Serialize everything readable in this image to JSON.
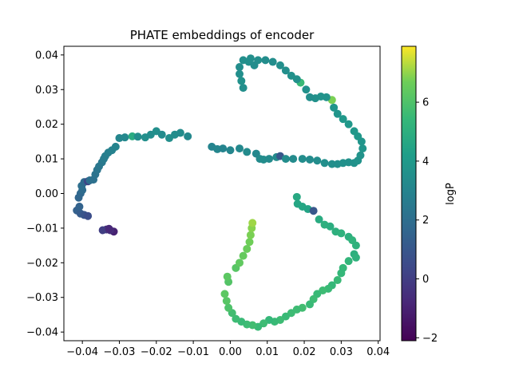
{
  "chart_data": {
    "type": "scatter",
    "title": "PHATE embeddings of encoder",
    "xlabel": "",
    "ylabel": "",
    "xlim": [
      -0.045,
      0.0405
    ],
    "ylim": [
      -0.0425,
      0.0425
    ],
    "x_ticks": [
      -0.04,
      -0.03,
      -0.02,
      -0.01,
      0.0,
      0.01,
      0.02,
      0.03,
      0.04
    ],
    "x_tick_labels": [
      "−0.04",
      "−0.03",
      "−0.02",
      "−0.01",
      "0.00",
      "0.01",
      "0.02",
      "0.03",
      "0.04"
    ],
    "y_ticks": [
      -0.04,
      -0.03,
      -0.02,
      -0.01,
      0.0,
      0.01,
      0.02,
      0.03,
      0.04
    ],
    "y_tick_labels": [
      "−0.04",
      "−0.03",
      "−0.02",
      "−0.01",
      "0.00",
      "0.01",
      "0.02",
      "0.03",
      "0.04"
    ],
    "grid": false,
    "colorbar": {
      "label": "logP",
      "colormap": "viridis",
      "range": [
        -2.1,
        7.9
      ],
      "ticks": [
        -2,
        0,
        2,
        4,
        6
      ],
      "tick_labels": [
        "−2",
        "0",
        "2",
        "4",
        "6"
      ]
    },
    "marker_color_note": "point color encodes logP value",
    "points": [
      [
        -0.0315,
        -0.011,
        -1.0
      ],
      [
        -0.0325,
        -0.0106,
        -0.6
      ],
      [
        -0.0335,
        -0.0104,
        -0.3
      ],
      [
        -0.0345,
        -0.0106,
        0.0
      ],
      [
        -0.0328,
        -0.0102,
        -0.8
      ],
      [
        -0.0415,
        -0.0049,
        1.4
      ],
      [
        -0.0405,
        -0.0058,
        1.2
      ],
      [
        -0.0395,
        -0.0062,
        0.9
      ],
      [
        -0.0385,
        -0.0065,
        0.6
      ],
      [
        -0.0408,
        -0.0038,
        1.5
      ],
      [
        -0.041,
        -0.0012,
        1.6
      ],
      [
        -0.0405,
        0.0,
        1.7
      ],
      [
        -0.04,
        0.001,
        1.9
      ],
      [
        -0.0402,
        0.0022,
        2.0
      ],
      [
        -0.0395,
        0.0033,
        1.8
      ],
      [
        -0.0385,
        0.0035,
        0.2
      ],
      [
        -0.038,
        0.0038,
        2.0
      ],
      [
        -0.037,
        0.004,
        2.1
      ],
      [
        -0.0365,
        0.0055,
        2.2
      ],
      [
        -0.036,
        0.0068,
        2.3
      ],
      [
        -0.0355,
        0.0078,
        2.4
      ],
      [
        -0.0347,
        0.009,
        2.5
      ],
      [
        -0.0342,
        0.01,
        2.6
      ],
      [
        -0.0338,
        0.0108,
        2.7
      ],
      [
        -0.033,
        0.0118,
        2.8
      ],
      [
        -0.032,
        0.0125,
        2.9
      ],
      [
        -0.031,
        0.0135,
        3.0
      ],
      [
        -0.03,
        0.016,
        3.1
      ],
      [
        -0.0285,
        0.0162,
        3.2
      ],
      [
        -0.0265,
        0.0165,
        4.8
      ],
      [
        -0.025,
        0.0164,
        3.4
      ],
      [
        -0.023,
        0.0162,
        3.5
      ],
      [
        -0.0215,
        0.017,
        3.4
      ],
      [
        -0.02,
        0.018,
        3.5
      ],
      [
        -0.0185,
        0.017,
        3.3
      ],
      [
        -0.0165,
        0.016,
        3.5
      ],
      [
        -0.015,
        0.017,
        3.4
      ],
      [
        -0.0135,
        0.0175,
        3.3
      ],
      [
        -0.0115,
        0.0165,
        3.2
      ],
      [
        -0.005,
        0.0135,
        3.0
      ],
      [
        -0.0035,
        0.0128,
        3.1
      ],
      [
        -0.002,
        0.013,
        3.0
      ],
      [
        0.0,
        0.0125,
        3.1
      ],
      [
        0.0025,
        0.013,
        3.2
      ],
      [
        0.0045,
        0.012,
        3.3
      ],
      [
        0.007,
        0.0115,
        3.2
      ],
      [
        0.008,
        0.01,
        3.3
      ],
      [
        0.009,
        0.0098,
        3.4
      ],
      [
        0.0105,
        0.01,
        3.3
      ],
      [
        0.0125,
        0.0105,
        3.3
      ],
      [
        0.0135,
        0.0108,
        1.0
      ],
      [
        0.015,
        0.01,
        3.4
      ],
      [
        0.017,
        0.01,
        3.3
      ],
      [
        0.0195,
        0.01,
        3.4
      ],
      [
        0.0215,
        0.0098,
        3.3
      ],
      [
        0.0235,
        0.0095,
        3.4
      ],
      [
        0.0255,
        0.0088,
        3.5
      ],
      [
        0.0275,
        0.0085,
        3.5
      ],
      [
        0.029,
        0.0085,
        3.5
      ],
      [
        0.0305,
        0.0088,
        3.6
      ],
      [
        0.032,
        0.009,
        3.6
      ],
      [
        0.0335,
        0.0088,
        3.6
      ],
      [
        0.0345,
        0.0095,
        3.7
      ],
      [
        0.0352,
        0.011,
        3.7
      ],
      [
        0.0358,
        0.013,
        3.8
      ],
      [
        0.0355,
        0.015,
        3.8
      ],
      [
        0.0345,
        0.0165,
        3.9
      ],
      [
        0.0335,
        0.018,
        3.9
      ],
      [
        0.032,
        0.02,
        3.9
      ],
      [
        0.0305,
        0.0215,
        3.9
      ],
      [
        0.029,
        0.023,
        3.8
      ],
      [
        0.028,
        0.0248,
        3.8
      ],
      [
        0.0275,
        0.027,
        6.8
      ],
      [
        0.026,
        0.0278,
        3.7
      ],
      [
        0.0245,
        0.028,
        3.7
      ],
      [
        0.023,
        0.0275,
        3.6
      ],
      [
        0.0215,
        0.0278,
        3.5
      ],
      [
        0.0205,
        0.03,
        3.6
      ],
      [
        0.019,
        0.032,
        5.5
      ],
      [
        0.018,
        0.033,
        3.6
      ],
      [
        0.0165,
        0.034,
        3.6
      ],
      [
        0.015,
        0.0355,
        3.5
      ],
      [
        0.0135,
        0.037,
        3.5
      ],
      [
        0.0115,
        0.038,
        3.4
      ],
      [
        0.0095,
        0.0385,
        3.4
      ],
      [
        0.0075,
        0.0385,
        3.5
      ],
      [
        0.0055,
        0.039,
        3.5
      ],
      [
        0.0035,
        0.0385,
        3.5
      ],
      [
        0.0025,
        0.0365,
        3.4
      ],
      [
        0.0025,
        0.0345,
        3.5
      ],
      [
        0.003,
        0.0325,
        3.6
      ],
      [
        0.0035,
        0.0305,
        3.5
      ],
      [
        0.005,
        0.038,
        3.5
      ],
      [
        0.0065,
        0.037,
        3.4
      ],
      [
        0.018,
        -0.001,
        4.7
      ],
      [
        0.0182,
        -0.003,
        4.6
      ],
      [
        0.0195,
        -0.0038,
        4.6
      ],
      [
        0.021,
        -0.0045,
        4.5
      ],
      [
        0.0225,
        -0.005,
        1.0
      ],
      [
        0.024,
        -0.0075,
        4.8
      ],
      [
        0.0255,
        -0.009,
        5.0
      ],
      [
        0.027,
        -0.0095,
        4.9
      ],
      [
        0.0285,
        -0.011,
        5.0
      ],
      [
        0.03,
        -0.0115,
        5.1
      ],
      [
        0.032,
        -0.0125,
        5.0
      ],
      [
        0.033,
        -0.0135,
        5.2
      ],
      [
        0.034,
        -0.015,
        5.1
      ],
      [
        0.0335,
        -0.0175,
        5.0
      ],
      [
        0.034,
        -0.0185,
        5.1
      ],
      [
        0.032,
        -0.0195,
        5.3
      ],
      [
        0.0305,
        -0.0215,
        5.4
      ],
      [
        0.03,
        -0.023,
        5.4
      ],
      [
        0.029,
        -0.025,
        5.5
      ],
      [
        0.0275,
        -0.0265,
        5.4
      ],
      [
        0.0265,
        -0.0275,
        5.5
      ],
      [
        0.025,
        -0.028,
        5.6
      ],
      [
        0.0235,
        -0.029,
        5.5
      ],
      [
        0.0225,
        -0.0305,
        5.6
      ],
      [
        0.0215,
        -0.032,
        5.5
      ],
      [
        0.0195,
        -0.033,
        5.7
      ],
      [
        0.018,
        -0.0335,
        5.6
      ],
      [
        0.0165,
        -0.0345,
        5.6
      ],
      [
        0.015,
        -0.0355,
        5.5
      ],
      [
        0.0135,
        -0.0365,
        5.6
      ],
      [
        0.012,
        -0.037,
        5.5
      ],
      [
        0.0105,
        -0.0365,
        5.4
      ],
      [
        0.009,
        -0.0375,
        5.6
      ],
      [
        0.0075,
        -0.0385,
        5.5
      ],
      [
        0.006,
        -0.038,
        5.7
      ],
      [
        0.0045,
        -0.0378,
        5.6
      ],
      [
        0.003,
        -0.037,
        5.5
      ],
      [
        0.0015,
        -0.0362,
        5.6
      ],
      [
        0.0005,
        -0.0345,
        5.7
      ],
      [
        -0.0005,
        -0.033,
        6.0
      ],
      [
        -0.001,
        -0.031,
        6.2
      ],
      [
        -0.0015,
        -0.029,
        6.3
      ],
      [
        -0.0005,
        -0.0255,
        6.1
      ],
      [
        -0.0008,
        -0.024,
        6.3
      ],
      [
        0.0015,
        -0.0215,
        6.2
      ],
      [
        0.0025,
        -0.02,
        6.4
      ],
      [
        0.0035,
        -0.018,
        6.5
      ],
      [
        0.0045,
        -0.016,
        6.6
      ],
      [
        0.0052,
        -0.014,
        6.7
      ],
      [
        0.0055,
        -0.012,
        6.8
      ],
      [
        0.0058,
        -0.01,
        6.9
      ],
      [
        0.006,
        -0.0085,
        7.1
      ]
    ]
  }
}
